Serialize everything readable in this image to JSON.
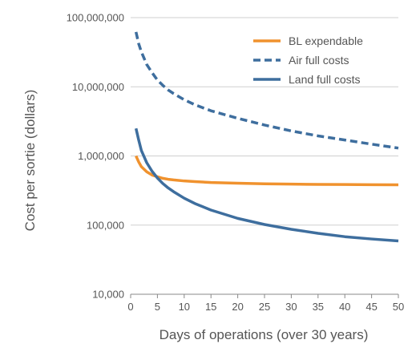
{
  "chart_data": {
    "type": "line",
    "title": "",
    "xlabel": "Days of operations (over 30 years)",
    "ylabel": "Cost per sortie (dollars)",
    "xlim": [
      0,
      50
    ],
    "ylim": [
      10000,
      100000000
    ],
    "yscale": "log",
    "grid": "horizontal",
    "legend_position": "top-right",
    "x_ticks": [
      0,
      5,
      10,
      15,
      20,
      25,
      30,
      35,
      40,
      45,
      50
    ],
    "x_tick_labels": [
      "0",
      "5",
      "10",
      "15",
      "20",
      "25",
      "30",
      "35",
      "40",
      "45",
      "50"
    ],
    "y_ticks": [
      10000,
      100000,
      1000000,
      10000000,
      100000000
    ],
    "y_tick_labels": [
      "10,000",
      "100,000",
      "1,000,000",
      "10,000,000",
      "100,000,000"
    ],
    "series": [
      {
        "name": "BL expendable",
        "color": "#F0922E",
        "dash": "solid",
        "x": [
          1,
          1.5,
          2,
          3,
          4,
          5,
          6,
          7,
          8,
          10,
          12,
          15,
          20,
          25,
          30,
          35,
          40,
          45,
          50
        ],
        "y": [
          1000000,
          820000,
          700000,
          590000,
          530000,
          500000,
          475000,
          460000,
          450000,
          435000,
          425000,
          413000,
          403000,
          396000,
          391000,
          388000,
          386000,
          384000,
          382000
        ]
      },
      {
        "name": "Air full costs",
        "color": "#3E6E9E",
        "dash": "dashed",
        "x": [
          1,
          1.5,
          2,
          3,
          4,
          5,
          6,
          7,
          8,
          10,
          12,
          15,
          20,
          25,
          30,
          35,
          40,
          45,
          50
        ],
        "y": [
          62000000,
          42000000,
          32000000,
          21000000,
          16000000,
          12500000,
          10500000,
          9000000,
          8000000,
          6500000,
          5500000,
          4500000,
          3500000,
          2800000,
          2300000,
          1950000,
          1700000,
          1480000,
          1300000
        ]
      },
      {
        "name": "Land full costs",
        "color": "#3E6E9E",
        "dash": "solid",
        "x": [
          1,
          1.5,
          2,
          3,
          4,
          5,
          6,
          7,
          8,
          10,
          12,
          15,
          20,
          25,
          30,
          35,
          40,
          45,
          50
        ],
        "y": [
          2500000,
          1700000,
          1200000,
          800000,
          600000,
          480000,
          400000,
          345000,
          305000,
          245000,
          205000,
          165000,
          125000,
          102000,
          87000,
          76000,
          68000,
          63000,
          59000
        ]
      }
    ]
  }
}
